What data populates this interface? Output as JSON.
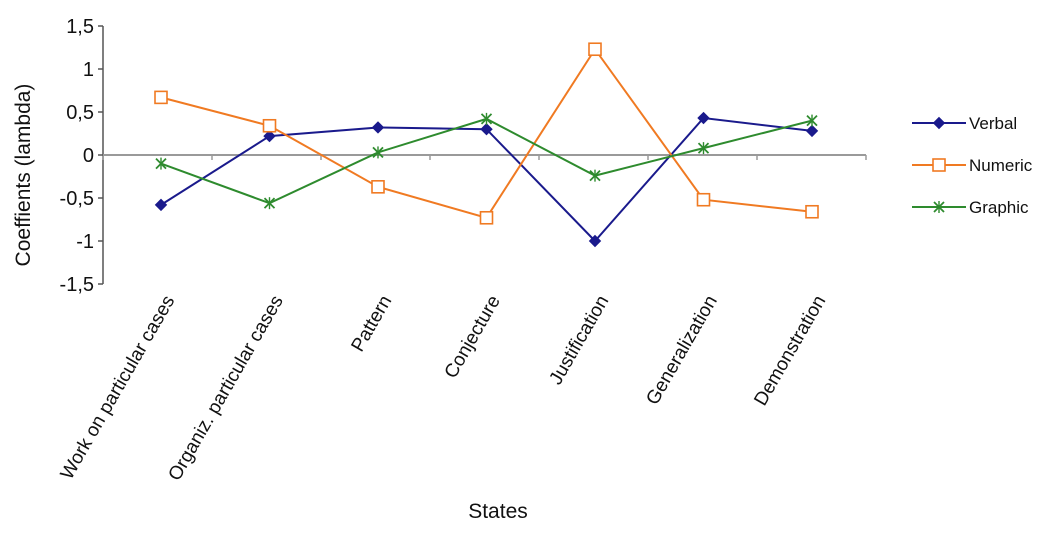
{
  "chart_data": {
    "type": "line",
    "categories": [
      "Work on particular cases",
      "Organiz. particular cases",
      "Pattern",
      "Conjecture",
      "Justification",
      "Generalization",
      "Demonstration"
    ],
    "xlabel": "States",
    "ylabel": "Coeffients (lambda)",
    "ylim": [
      -1.5,
      1.5
    ],
    "yticks": [
      "1,5",
      "1",
      "0,5",
      "0",
      "-0,5",
      "-1",
      "-1,5"
    ],
    "ytick_values": [
      1.5,
      1,
      0.5,
      0,
      -0.5,
      -1,
      -1.5
    ],
    "grid": false,
    "legend_position": "right",
    "series": [
      {
        "name": "Verbal",
        "color": "#1a1a8c",
        "marker": "diamond",
        "values": [
          -0.58,
          0.22,
          0.32,
          0.3,
          -1.0,
          0.43,
          0.28
        ]
      },
      {
        "name": "Numeric",
        "color": "#f07a22",
        "marker": "square",
        "values": [
          0.67,
          0.34,
          -0.37,
          -0.73,
          1.23,
          -0.52,
          -0.66
        ]
      },
      {
        "name": "Graphic",
        "color": "#2e8b2e",
        "marker": "x",
        "values": [
          -0.1,
          -0.56,
          0.03,
          0.42,
          -0.24,
          0.08,
          0.4
        ]
      }
    ]
  }
}
